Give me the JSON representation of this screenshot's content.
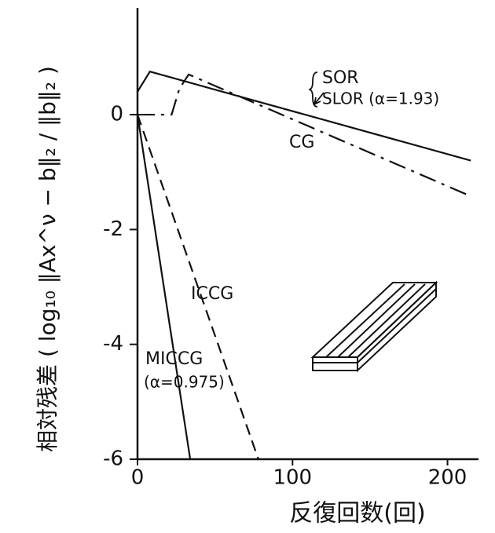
{
  "chart_data": {
    "type": "line",
    "y_label": "相対残差 ( log₁₀ ‖Ax^ν − b‖₂ / ‖b‖₂ )",
    "x_label": "反復回数(回)",
    "xlim": [
      0,
      220
    ],
    "ylim": [
      -6,
      1.86
    ],
    "xticks": [
      0,
      100,
      200
    ],
    "yticks": [
      -6,
      -4,
      -2,
      0
    ],
    "series": [
      {
        "name": "SOR",
        "color": "#111111",
        "dash": "solid",
        "x": [
          0,
          8,
          215
        ],
        "values": [
          0.4,
          0.75,
          -0.8
        ]
      },
      {
        "name": "CG",
        "color": "#111111",
        "dash": "dashdot",
        "x": [
          0,
          22,
          27,
          33,
          215
        ],
        "values": [
          0,
          0,
          0.45,
          0.7,
          -1.42
        ]
      },
      {
        "name": "ICCG",
        "color": "#111111",
        "dash": "dashed",
        "x": [
          0,
          78
        ],
        "values": [
          0,
          -6
        ]
      },
      {
        "name": "MICCG",
        "color": "#111111",
        "dash": "solid",
        "x": [
          0,
          34
        ],
        "values": [
          0,
          -6
        ]
      }
    ],
    "annotations": [
      "SLOR (α=1.93)",
      "(α=0.975)"
    ]
  }
}
